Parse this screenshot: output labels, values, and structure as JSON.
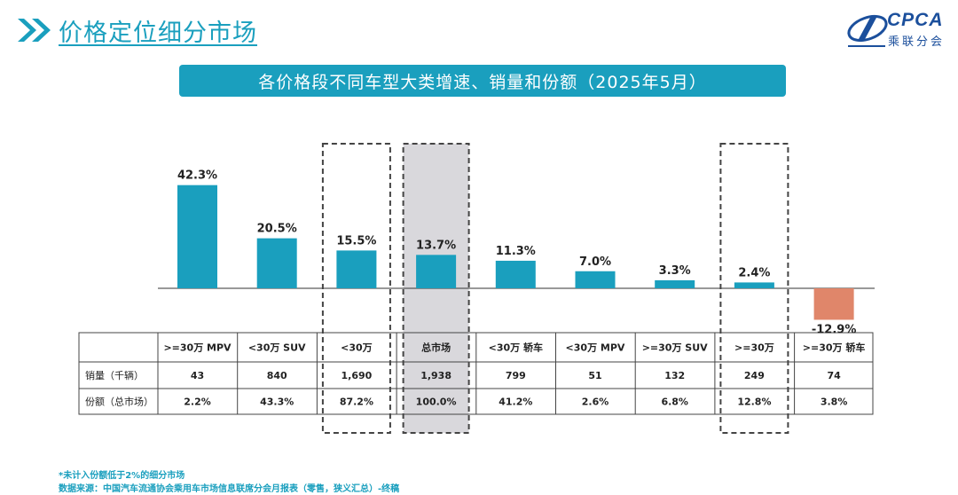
{
  "header": {
    "title": "价格定位细分市场"
  },
  "logo": {
    "text": "CPCA",
    "sub": "乘联分会"
  },
  "banner": {
    "title": "各价格段不同车型大类增速、销量和份额（2025年5月）"
  },
  "colors": {
    "accent": "#1a9fbe",
    "positive_bar": "#1a9fbe",
    "negative_bar": "#e0866a",
    "highlight_fill": "#d9d8dc"
  },
  "chart_data": {
    "type": "bar",
    "title": "各价格段不同车型大类增速、销量和份额（2025年5月）",
    "categories": [
      ">=30万 MPV",
      "<30万 SUV",
      "<30万",
      "总市场",
      "<30万 轿车",
      "<30万 MPV",
      ">=30万 SUV",
      ">=30万",
      ">=30万 轿车"
    ],
    "series": [
      {
        "values": [
          42.3,
          20.5,
          15.5,
          13.7,
          11.3,
          7.0,
          3.3,
          2.4,
          -12.9
        ]
      }
    ],
    "value_labels": [
      "42.3%",
      "20.5%",
      "15.5%",
      "13.7%",
      "11.3%",
      "7.0%",
      "3.3%",
      "2.4%",
      "-12.9%"
    ],
    "dashed_highlight_columns": [
      "<30万",
      ">=30万"
    ],
    "shaded_highlight_columns": [
      "总市场"
    ],
    "grid": false,
    "legend": "none"
  },
  "table": {
    "rows": [
      {
        "label": "销量（千辆）",
        "values": [
          "43",
          "840",
          "1,690",
          "1,938",
          "799",
          "51",
          "132",
          "249",
          "74"
        ]
      },
      {
        "label": "份额（总市场）",
        "values": [
          "2.2%",
          "43.3%",
          "87.2%",
          "100.0%",
          "41.2%",
          "2.6%",
          "6.8%",
          "12.8%",
          "3.8%"
        ]
      }
    ]
  },
  "footnotes": [
    "*未计入份额低于2%的细分市场",
    "数据来源：中国汽车流通协会乘用车市场信息联席分会月报表（零售，狭义汇总）-终稿"
  ]
}
